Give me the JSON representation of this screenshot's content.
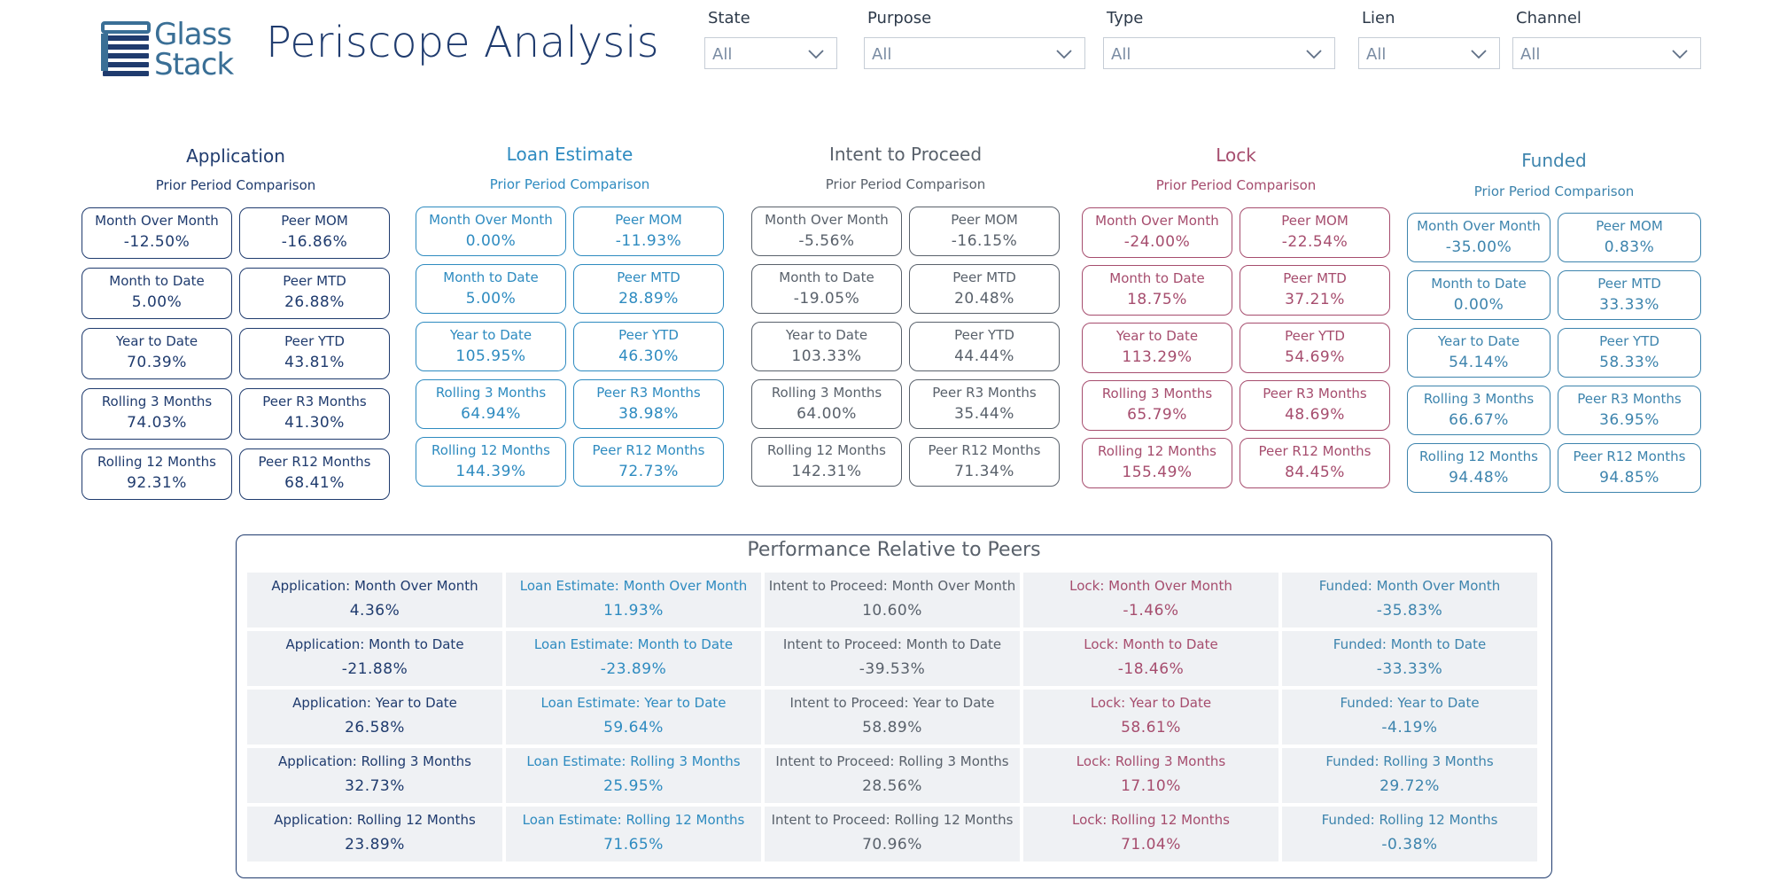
{
  "header": {
    "logo_lines": [
      "Glass",
      "Stack"
    ],
    "title": "Periscope Analysis"
  },
  "filters": [
    {
      "label": "State",
      "value": "All"
    },
    {
      "label": "Purpose",
      "value": "All"
    },
    {
      "label": "Type",
      "value": "All"
    },
    {
      "label": "Lien",
      "value": "All"
    },
    {
      "label": "Channel",
      "value": "All"
    }
  ],
  "colors": {
    "application": "#1f3b6e",
    "loan_estimate": "#2e8bc0",
    "intent": "#59616b",
    "lock": "#a64d6e",
    "funded": "#3d84ad"
  },
  "stages": [
    {
      "title": "Application",
      "subtitle": "Prior Period Comparison",
      "cards": [
        {
          "label": "Month Over Month",
          "value": "-12.50%"
        },
        {
          "label": "Peer MOM",
          "value": "-16.86%"
        },
        {
          "label": "Month to Date",
          "value": "5.00%"
        },
        {
          "label": "Peer MTD",
          "value": "26.88%"
        },
        {
          "label": "Year to Date",
          "value": "70.39%"
        },
        {
          "label": "Peer YTD",
          "value": "43.81%"
        },
        {
          "label": "Rolling 3 Months",
          "value": "74.03%"
        },
        {
          "label": "Peer R3 Months",
          "value": "41.30%"
        },
        {
          "label": "Rolling 12 Months",
          "value": "92.31%"
        },
        {
          "label": "Peer R12 Months",
          "value": "68.41%"
        }
      ]
    },
    {
      "title": "Loan Estimate",
      "subtitle": "Prior Period Comparison",
      "cards": [
        {
          "label": "Month Over Month",
          "value": "0.00%"
        },
        {
          "label": "Peer MOM",
          "value": "-11.93%"
        },
        {
          "label": "Month to Date",
          "value": "5.00%"
        },
        {
          "label": "Peer MTD",
          "value": "28.89%"
        },
        {
          "label": "Year to Date",
          "value": "105.95%"
        },
        {
          "label": "Peer YTD",
          "value": "46.30%"
        },
        {
          "label": "Rolling 3 Months",
          "value": "64.94%"
        },
        {
          "label": "Peer R3 Months",
          "value": "38.98%"
        },
        {
          "label": "Rolling 12 Months",
          "value": "144.39%"
        },
        {
          "label": "Peer R12 Months",
          "value": "72.73%"
        }
      ]
    },
    {
      "title": "Intent to Proceed",
      "subtitle": "Prior Period Comparison",
      "cards": [
        {
          "label": "Month Over Month",
          "value": "-5.56%"
        },
        {
          "label": "Peer MOM",
          "value": "-16.15%"
        },
        {
          "label": "Month to Date",
          "value": "-19.05%"
        },
        {
          "label": "Peer MTD",
          "value": "20.48%"
        },
        {
          "label": "Year to Date",
          "value": "103.33%"
        },
        {
          "label": "Peer YTD",
          "value": "44.44%"
        },
        {
          "label": "Rolling 3 Months",
          "value": "64.00%"
        },
        {
          "label": "Peer R3 Months",
          "value": "35.44%"
        },
        {
          "label": "Rolling 12 Months",
          "value": "142.31%"
        },
        {
          "label": "Peer R12 Months",
          "value": "71.34%"
        }
      ]
    },
    {
      "title": "Lock",
      "subtitle": "Prior Period Comparison",
      "cards": [
        {
          "label": "Month Over Month",
          "value": "-24.00%"
        },
        {
          "label": "Peer MOM",
          "value": "-22.54%"
        },
        {
          "label": "Month to Date",
          "value": "18.75%"
        },
        {
          "label": "Peer MTD",
          "value": "37.21%"
        },
        {
          "label": "Year to Date",
          "value": "113.29%"
        },
        {
          "label": "Peer YTD",
          "value": "54.69%"
        },
        {
          "label": "Rolling 3 Months",
          "value": "65.79%"
        },
        {
          "label": "Peer R3 Months",
          "value": "48.69%"
        },
        {
          "label": "Rolling 12 Months",
          "value": "155.49%"
        },
        {
          "label": "Peer R12 Months",
          "value": "84.45%"
        }
      ]
    },
    {
      "title": "Funded",
      "subtitle": "Prior Period Comparison",
      "cards": [
        {
          "label": "Month Over Month",
          "value": "-35.00%"
        },
        {
          "label": "Peer MOM",
          "value": "0.83%"
        },
        {
          "label": "Month to Date",
          "value": "0.00%"
        },
        {
          "label": "Peer MTD",
          "value": "33.33%"
        },
        {
          "label": "Year to Date",
          "value": "54.14%"
        },
        {
          "label": "Peer YTD",
          "value": "58.33%"
        },
        {
          "label": "Rolling 3 Months",
          "value": "66.67%"
        },
        {
          "label": "Peer R3 Months",
          "value": "36.95%"
        },
        {
          "label": "Rolling 12 Months",
          "value": "94.48%"
        },
        {
          "label": "Peer R12 Months",
          "value": "94.85%"
        }
      ]
    }
  ],
  "performance": {
    "title": "Performance Relative to Peers",
    "columns": [
      {
        "rows": [
          {
            "label": "Application: Month Over Month",
            "value": "4.36%"
          },
          {
            "label": "Application: Month to Date",
            "value": "-21.88%"
          },
          {
            "label": "Application: Year to Date",
            "value": "26.58%"
          },
          {
            "label": "Application: Rolling 3 Months",
            "value": "32.73%"
          },
          {
            "label": "Application: Rolling 12 Months",
            "value": "23.89%"
          }
        ]
      },
      {
        "rows": [
          {
            "label": "Loan Estimate: Month Over Month",
            "value": "11.93%"
          },
          {
            "label": "Loan Estimate: Month to Date",
            "value": "-23.89%"
          },
          {
            "label": "Loan Estimate: Year to Date",
            "value": "59.64%"
          },
          {
            "label": "Loan Estimate: Rolling 3 Months",
            "value": "25.95%"
          },
          {
            "label": "Loan Estimate: Rolling 12 Months",
            "value": "71.65%"
          }
        ]
      },
      {
        "rows": [
          {
            "label": "Intent to Proceed: Month Over Month",
            "value": "10.60%"
          },
          {
            "label": "Intent to Proceed: Month to Date",
            "value": "-39.53%"
          },
          {
            "label": "Intent to Proceed: Year to Date",
            "value": "58.89%"
          },
          {
            "label": "Intent to Proceed: Rolling 3 Months",
            "value": "28.56%"
          },
          {
            "label": "Intent to Proceed: Rolling 12 Months",
            "value": "70.96%"
          }
        ]
      },
      {
        "rows": [
          {
            "label": "Lock: Month Over Month",
            "value": "-1.46%"
          },
          {
            "label": "Lock: Month to Date",
            "value": "-18.46%"
          },
          {
            "label": "Lock: Year to Date",
            "value": "58.61%"
          },
          {
            "label": "Lock: Rolling 3 Months",
            "value": "17.10%"
          },
          {
            "label": "Lock: Rolling 12 Months",
            "value": "71.04%"
          }
        ]
      },
      {
        "rows": [
          {
            "label": "Funded: Month Over Month",
            "value": "-35.83%"
          },
          {
            "label": "Funded: Month to Date",
            "value": "-33.33%"
          },
          {
            "label": "Funded: Year to Date",
            "value": "-4.19%"
          },
          {
            "label": "Funded: Rolling 3 Months",
            "value": "29.72%"
          },
          {
            "label": "Funded: Rolling 12 Months",
            "value": "-0.38%"
          }
        ]
      }
    ]
  }
}
